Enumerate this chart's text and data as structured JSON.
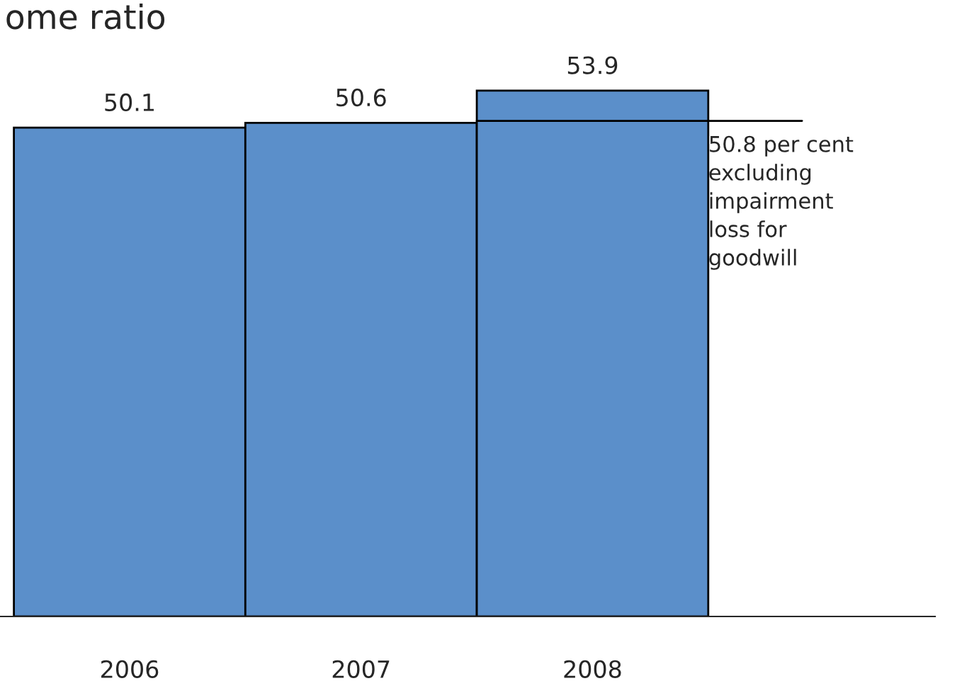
{
  "chart_data": {
    "type": "bar",
    "title": "ome ratio",
    "categories": [
      "2006",
      "2007",
      "2008"
    ],
    "values": [
      50.1,
      50.6,
      53.9
    ],
    "color": "#5b8fca",
    "data_labels": true,
    "ref_lines": [
      {
        "axis": "y",
        "value": 50.8,
        "label": "50.8 per cent\nexcluding\nimpairment\nloss for\ngoodwill",
        "color": "#000000"
      }
    ],
    "grid": false,
    "legend": false
  }
}
